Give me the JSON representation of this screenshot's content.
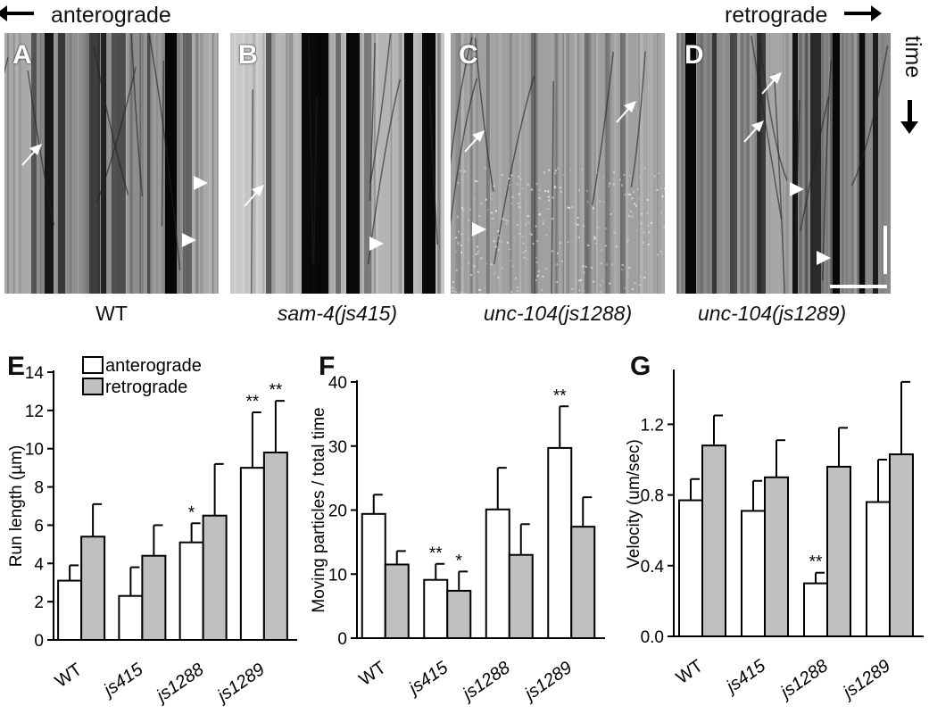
{
  "header": {
    "left_label": "anterograde",
    "right_label": "retrograde",
    "time_label": "time"
  },
  "kymographs": [
    {
      "letter": "A",
      "label": "WT",
      "italic": false
    },
    {
      "letter": "B",
      "label": "sam-4(js415)",
      "italic": true
    },
    {
      "letter": "C",
      "label": "unc-104(js1288)",
      "italic": true
    },
    {
      "letter": "D",
      "label": "unc-104(js1289)",
      "italic": true
    }
  ],
  "colors": {
    "anterograde_fill": "#ffffff",
    "retrograde_fill": "#c0c0c0",
    "stroke": "#000000"
  },
  "chart_data": [
    {
      "panel": "E",
      "type": "bar",
      "ylabel": "Run length (µm)",
      "ylim": [
        0,
        14
      ],
      "yticks": [
        0,
        2,
        4,
        6,
        8,
        10,
        12,
        14
      ],
      "categories": [
        "WT",
        "js415",
        "js1288",
        "js1289"
      ],
      "legend": [
        "anterograde",
        "retrograde"
      ],
      "series": [
        {
          "name": "anterograde",
          "values": [
            3.1,
            2.3,
            5.1,
            9.0
          ],
          "errors": [
            0.8,
            1.5,
            1.0,
            2.9
          ],
          "marks": [
            "",
            "",
            "*",
            "**"
          ]
        },
        {
          "name": "retrograde",
          "values": [
            5.4,
            4.4,
            6.5,
            9.8
          ],
          "errors": [
            1.7,
            1.6,
            2.7,
            2.7
          ],
          "marks": [
            "",
            "",
            "",
            "**"
          ]
        }
      ]
    },
    {
      "panel": "F",
      "type": "bar",
      "ylabel": "Moving particles / total time",
      "ylim": [
        0,
        40
      ],
      "yticks": [
        0,
        10,
        20,
        30,
        40
      ],
      "categories": [
        "WT",
        "js415",
        "js1288",
        "js1289"
      ],
      "series": [
        {
          "name": "anterograde",
          "values": [
            19.4,
            9.1,
            20.1,
            29.7
          ],
          "errors": [
            3.0,
            2.5,
            6.5,
            6.5
          ],
          "marks": [
            "",
            "**",
            "",
            "**"
          ]
        },
        {
          "name": "retrograde",
          "values": [
            11.5,
            7.4,
            13.0,
            17.4
          ],
          "errors": [
            2.1,
            3.0,
            4.8,
            4.6
          ],
          "marks": [
            "",
            "*",
            "",
            ""
          ]
        }
      ]
    },
    {
      "panel": "G",
      "type": "bar",
      "ylabel": "Velocity (um/sec)",
      "ylim": [
        0,
        1.5
      ],
      "yticks": [
        "0.0",
        "0.4",
        "0.8",
        "1.2"
      ],
      "categories": [
        "WT",
        "js415",
        "js1288",
        "js1289"
      ],
      "series": [
        {
          "name": "anterograde",
          "values": [
            0.77,
            0.71,
            0.3,
            0.76
          ],
          "errors": [
            0.12,
            0.17,
            0.06,
            0.24
          ],
          "marks": [
            "",
            "",
            "**",
            ""
          ]
        },
        {
          "name": "retrograde",
          "values": [
            1.08,
            0.9,
            0.96,
            1.03
          ],
          "errors": [
            0.17,
            0.21,
            0.22,
            0.41
          ],
          "marks": [
            "",
            "",
            "",
            ""
          ]
        }
      ]
    }
  ]
}
